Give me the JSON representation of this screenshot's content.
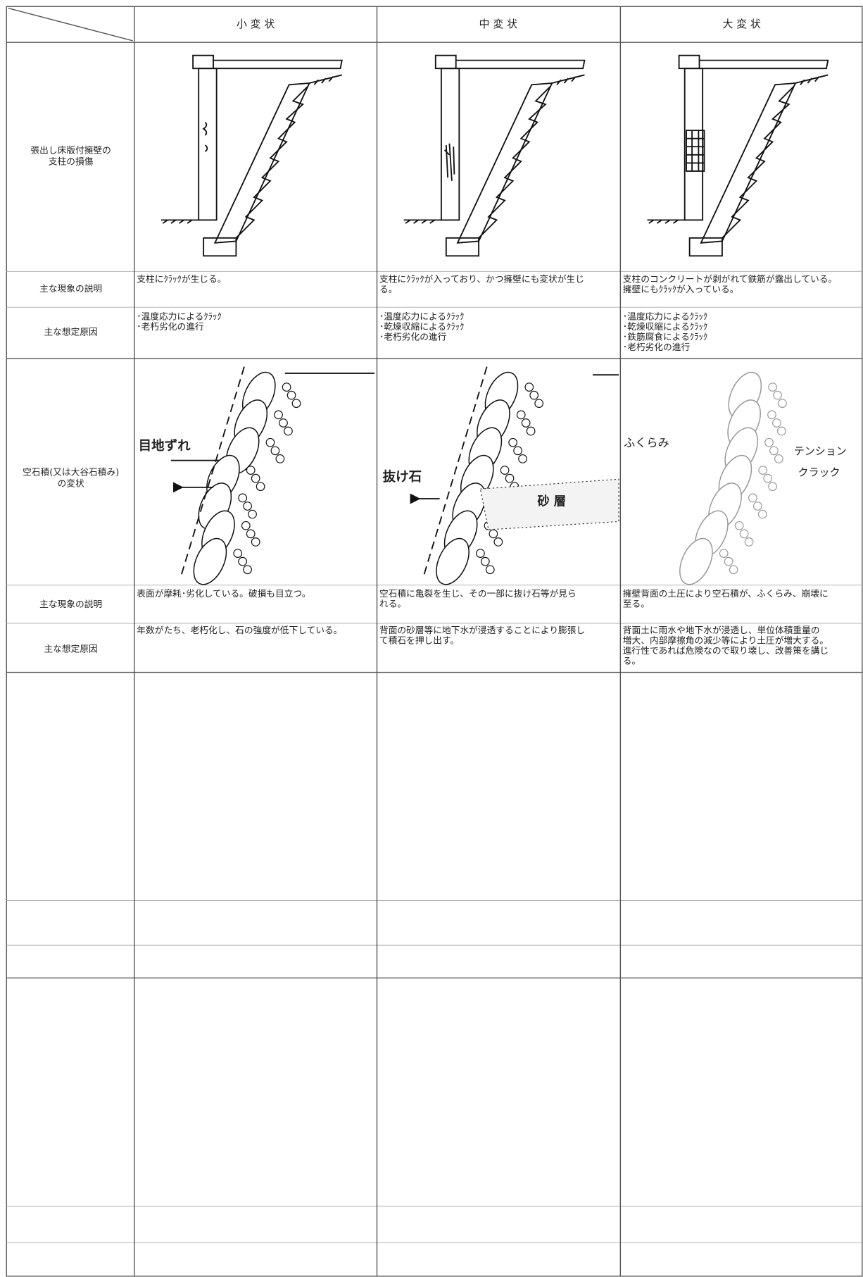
{
  "header": {
    "columns": [
      "小 変 状",
      "中 変 状",
      "大 変 状"
    ]
  },
  "sections": [
    {
      "label": [
        "張出し床版付擁壁の",
        "支柱の損傷"
      ],
      "rows": [
        {
          "label": "主な現象の説明",
          "cells": [
            [
              "支柱にｸﾗｯｸが生じる。"
            ],
            [
              "支柱にｸﾗｯｸが入っており、かつ擁壁にも変状が生じ",
              "る。"
            ],
            [
              "支柱のコンクリートが剥がれて鉄筋が露出している。",
              "擁壁にもｸﾗｯｸが入っている。"
            ]
          ]
        },
        {
          "label": "主な想定原因",
          "cells": [
            [
              "･温度応力によるｸﾗｯｸ",
              "･老朽劣化の進行"
            ],
            [
              "･温度応力によるｸﾗｯｸ",
              "･乾燥収縮によるｸﾗｯｸ",
              "･老朽劣化の進行"
            ],
            [
              "･温度応力によるｸﾗｯｸ",
              "･乾燥収縮によるｸﾗｯｸ",
              "･鉄筋腐食によるｸﾗｯｸ",
              "･老朽劣化の進行"
            ]
          ]
        }
      ]
    },
    {
      "label": [
        "空石積(又は大谷石積み)",
        "の変状"
      ],
      "figure_labels": [
        [
          "目地ずれ"
        ],
        [
          "抜け石",
          "砂 層"
        ],
        [
          "ふくらみ",
          "テンション",
          "クラック"
        ]
      ],
      "rows": [
        {
          "label": "主な現象の説明",
          "cells": [
            [
              "表面が摩耗･劣化している。破損も目立つ。"
            ],
            [
              "空石積に亀裂を生じ、その一部に抜け石等が見ら",
              "れる。"
            ],
            [
              "擁壁背面の土圧により空石積が、ふくらみ、崩壊に",
              "至る。"
            ]
          ]
        },
        {
          "label": "主な想定原因",
          "cells": [
            [
              "年数がたち、老朽化し、石の強度が低下している。"
            ],
            [
              "背面の砂層等に地下水が浸透することにより膨張し",
              "て積石を押し出す。"
            ],
            [
              "背面土に雨水や地下水が浸透し、単位体積重量の",
              "増大、内部摩擦角の減少等により土圧が増大する。",
              "進行性であれば危険なので取り壊し、改善策を講じ",
              "る。"
            ]
          ]
        }
      ]
    }
  ]
}
